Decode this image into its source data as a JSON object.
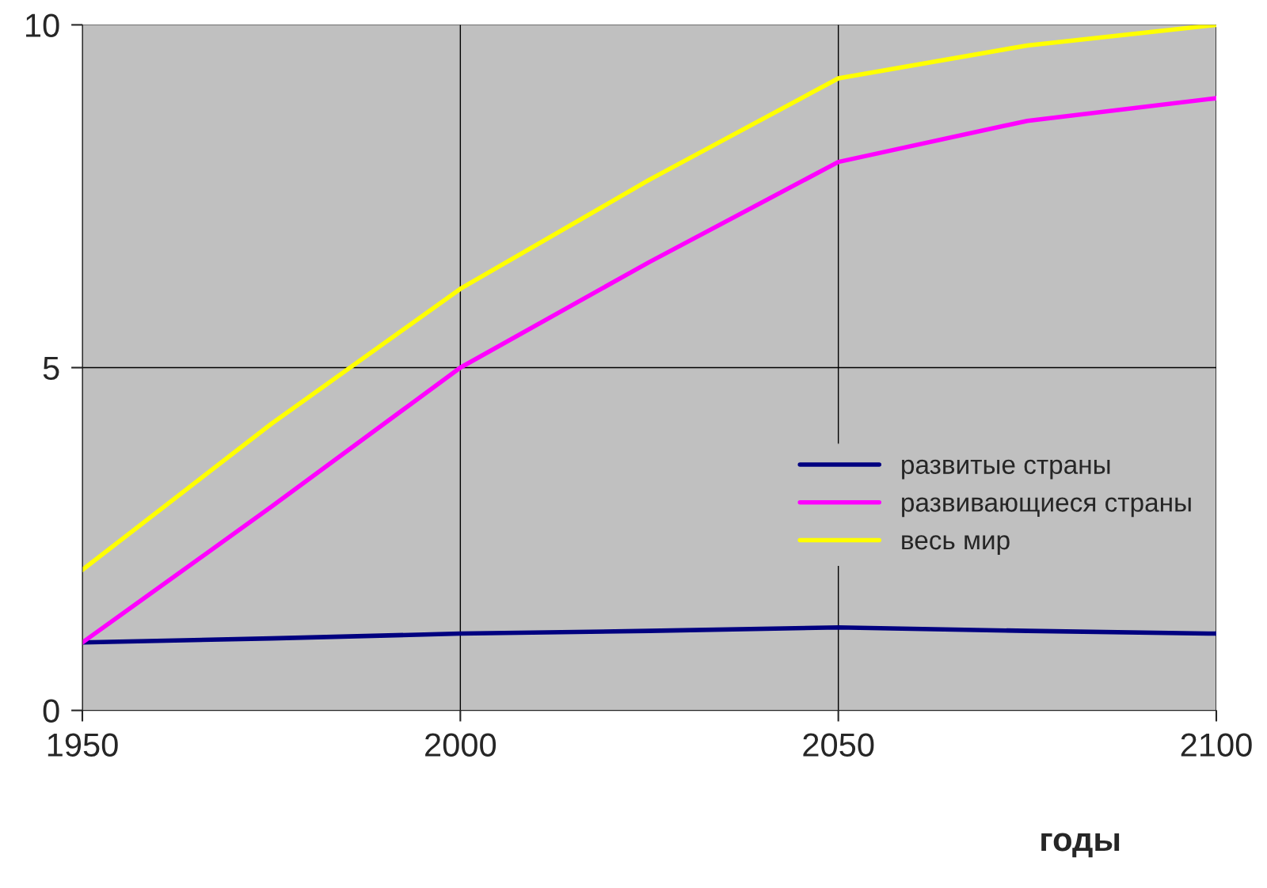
{
  "chart_data": {
    "type": "line",
    "xlabel": "годы",
    "x": [
      1950,
      1975,
      2000,
      2025,
      2050,
      2075,
      2100
    ],
    "series": [
      {
        "name": "развитые страны",
        "color": "#000080",
        "values": [
          0.99,
          1.05,
          1.12,
          1.16,
          1.21,
          1.16,
          1.12
        ]
      },
      {
        "name": "развивающиеся страны",
        "color": "#ff00ff",
        "values": [
          0.99,
          2.97,
          5.0,
          6.54,
          8.0,
          8.6,
          8.93
        ]
      },
      {
        "name": "весь мир",
        "color": "#ffff00",
        "values": [
          2.05,
          4.18,
          6.15,
          7.74,
          9.22,
          9.7,
          10.0
        ]
      }
    ],
    "xlim": [
      1950,
      2100
    ],
    "ylim": [
      0,
      10
    ],
    "xticks": [
      1950,
      2000,
      2050,
      2100
    ],
    "yticks": [
      0,
      5,
      10
    ],
    "grid": true,
    "legend": "center right",
    "marker": "none",
    "line_style": "solid"
  }
}
